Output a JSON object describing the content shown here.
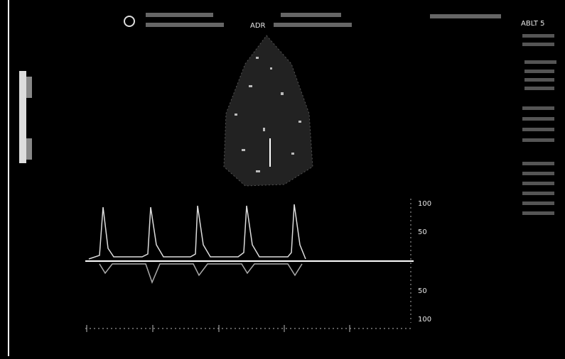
{
  "header": {
    "mode": "ADR",
    "preset": "ABLT 5"
  },
  "velocity_scale": {
    "labels": [
      "100",
      "50",
      "50",
      "100"
    ]
  }
}
